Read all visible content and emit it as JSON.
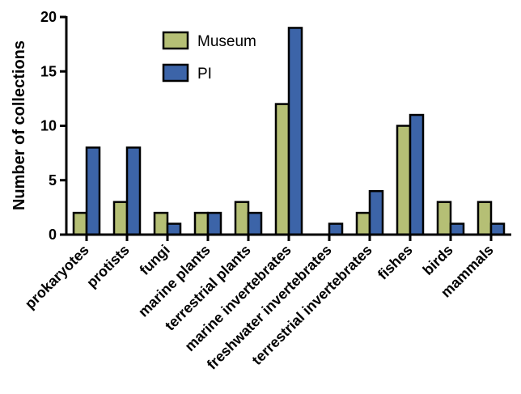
{
  "chart_data": {
    "type": "bar",
    "ylabel": "Number of collections",
    "xlabel": "",
    "ylim": [
      0,
      20
    ],
    "yticks": [
      0,
      5,
      10,
      15,
      20
    ],
    "categories": [
      "prokaryotes",
      "protists",
      "fungi",
      "marine plants",
      "terrestrial plants",
      "marine invertebrates",
      "freshwater invertebrates",
      "terrestrial invertebrates",
      "fishes",
      "birds",
      "mammals"
    ],
    "series": [
      {
        "name": "Museum",
        "color": "#b5bf75",
        "values": [
          2,
          3,
          2,
          2,
          3,
          12,
          0,
          2,
          10,
          3,
          3
        ]
      },
      {
        "name": "PI",
        "color": "#3c64a8",
        "values": [
          8,
          8,
          1,
          2,
          2,
          19,
          1,
          4,
          11,
          1,
          1
        ]
      }
    ],
    "grid": false,
    "legend_position": "top-left"
  }
}
